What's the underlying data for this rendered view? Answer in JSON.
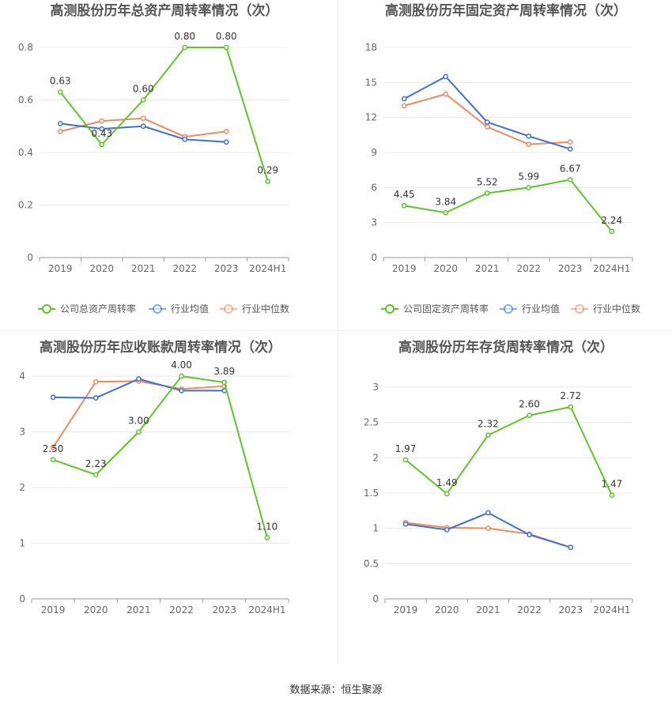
{
  "colors": {
    "company": "#5cc72b",
    "avg": "#3c6fd9",
    "median": "#f18a5e",
    "grid": "#e8e8e8",
    "axis": "#999999",
    "title": "#555555",
    "label": "#333333"
  },
  "footer": {
    "source": "数据来源：恒生聚源"
  },
  "chart_data": [
    {
      "type": "line",
      "title": "高测股份历年总资产周转率情况（次）",
      "categories": [
        "2019",
        "2020",
        "2021",
        "2022",
        "2023",
        "2024H1"
      ],
      "yticks": [
        "0",
        "0.2",
        "0.4",
        "0.6",
        "0.8"
      ],
      "ylim": [
        0,
        0.8
      ],
      "legend_position": "bottom",
      "grid": true,
      "series": [
        {
          "name": "公司总资产周转率",
          "values": [
            0.63,
            0.43,
            0.6,
            0.8,
            0.8,
            0.29
          ],
          "labels": [
            "0.63",
            "0.43",
            "0.60",
            "0.80",
            "0.80",
            "0.29"
          ]
        },
        {
          "name": "行业均值",
          "values": [
            0.51,
            0.49,
            0.5,
            0.45,
            0.44,
            null
          ]
        },
        {
          "name": "行业中位数",
          "values": [
            0.48,
            0.52,
            0.53,
            0.46,
            0.48,
            null
          ]
        }
      ]
    },
    {
      "type": "line",
      "title": "高测股份历年固定资产周转率情况（次）",
      "categories": [
        "2019",
        "2020",
        "2021",
        "2022",
        "2023",
        "2024H1"
      ],
      "yticks": [
        "0",
        "3",
        "6",
        "9",
        "12",
        "15",
        "18"
      ],
      "ylim": [
        0,
        18
      ],
      "legend_position": "bottom",
      "grid": true,
      "series": [
        {
          "name": "公司固定资产周转率",
          "values": [
            4.45,
            3.84,
            5.52,
            5.99,
            6.67,
            2.24
          ],
          "labels": [
            "4.45",
            "3.84",
            "5.52",
            "5.99",
            "6.67",
            "2.24"
          ]
        },
        {
          "name": "行业均值",
          "values": [
            13.6,
            15.5,
            11.6,
            10.4,
            9.3,
            null
          ]
        },
        {
          "name": "行业中位数",
          "values": [
            13.0,
            14.0,
            11.2,
            9.7,
            9.9,
            null
          ]
        }
      ]
    },
    {
      "type": "line",
      "title": "高测股份历年应收账款周转率情况（次）",
      "categories": [
        "2019",
        "2020",
        "2021",
        "2022",
        "2023",
        "2024H1"
      ],
      "yticks": [
        "0",
        "1",
        "2",
        "3",
        "4"
      ],
      "ylim": [
        0,
        4.2
      ],
      "legend_position": "bottom",
      "grid": true,
      "series": [
        {
          "name": "公司应收账款周转率",
          "values": [
            2.5,
            2.23,
            3.0,
            4.0,
            3.89,
            1.1
          ],
          "labels": [
            "2.50",
            "2.23",
            "3.00",
            "4.00",
            "3.89",
            "1.10"
          ]
        },
        {
          "name": "行业均值",
          "values": [
            3.62,
            3.61,
            3.95,
            3.74,
            3.74,
            null
          ]
        },
        {
          "name": "行业中位数",
          "values": [
            2.72,
            3.9,
            3.91,
            3.77,
            3.82,
            null
          ]
        }
      ]
    },
    {
      "type": "line",
      "title": "高测股份历年存货周转率情况（次）",
      "categories": [
        "2019",
        "2020",
        "2021",
        "2022",
        "2023",
        "2024H1"
      ],
      "yticks": [
        "0",
        "0.5",
        "1",
        "1.5",
        "2",
        "2.5",
        "3"
      ],
      "ylim": [
        0,
        3
      ],
      "legend_position": "bottom",
      "grid": true,
      "series": [
        {
          "name": "公司存货周转率",
          "values": [
            1.97,
            1.49,
            2.32,
            2.6,
            2.72,
            1.47
          ],
          "labels": [
            "1.97",
            "1.49",
            "2.32",
            "2.60",
            "2.72",
            "1.47"
          ]
        },
        {
          "name": "行业均值",
          "values": [
            1.06,
            0.98,
            1.22,
            0.91,
            0.73,
            null
          ]
        },
        {
          "name": "行业中位数",
          "values": [
            1.08,
            1.01,
            1.0,
            0.92,
            0.73,
            null
          ]
        }
      ]
    }
  ]
}
